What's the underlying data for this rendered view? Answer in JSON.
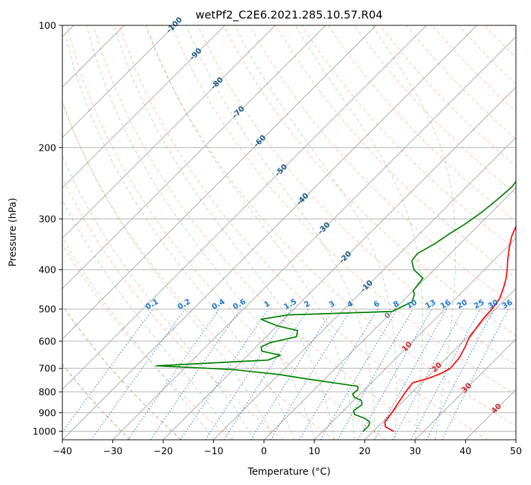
{
  "chart_data": {
    "type": "line",
    "title": "wetPf2_C2E6.2021.285.10.57.R04",
    "xlabel": "Temperature (°C)",
    "ylabel": "Pressure (hPa)",
    "xlim": [
      -40,
      50
    ],
    "ylim": [
      1050,
      100
    ],
    "y_scale": "log",
    "grid": true,
    "x_ticks": [
      "−40",
      "−30",
      "−20",
      "−10",
      "0",
      "10",
      "20",
      "30",
      "40",
      "50"
    ],
    "y_ticks": [
      "100",
      "200",
      "300",
      "400",
      "500",
      "600",
      "700",
      "800",
      "900",
      "1000"
    ],
    "series": [
      {
        "color": "#ff0000",
        "points": [
          [
            24,
            1000
          ],
          [
            21.5,
            975
          ],
          [
            20.5,
            950
          ],
          [
            20,
            900
          ],
          [
            19.3,
            850
          ],
          [
            18.6,
            800
          ],
          [
            18.2,
            760
          ],
          [
            20.5,
            740
          ],
          [
            22,
            720
          ],
          [
            22.8,
            700
          ],
          [
            22.5,
            660
          ],
          [
            21.5,
            620
          ],
          [
            20.5,
            590
          ],
          [
            20,
            560
          ],
          [
            19.5,
            530
          ],
          [
            19.3,
            500
          ],
          [
            18.7,
            470
          ],
          [
            17.2,
            440
          ],
          [
            16,
            420
          ],
          [
            14.5,
            400
          ],
          [
            12.8,
            380
          ],
          [
            10.3,
            350
          ],
          [
            8.7,
            330
          ],
          [
            7.5,
            310
          ],
          [
            6.2,
            290
          ],
          [
            4.6,
            270
          ],
          [
            3.2,
            250
          ],
          [
            2,
            230
          ],
          [
            0.8,
            210
          ],
          [
            0.2,
            200
          ],
          [
            1.1,
            190
          ],
          [
            2.7,
            180
          ],
          [
            3.2,
            170
          ],
          [
            3.7,
            160
          ],
          [
            3.7,
            150
          ],
          [
            3.5,
            140
          ],
          [
            3.3,
            130
          ],
          [
            3,
            120
          ],
          [
            2.3,
            115
          ],
          [
            1.5,
            110
          ],
          [
            2.3,
            104
          ],
          [
            4,
            100
          ]
        ]
      },
      {
        "color": "#008000",
        "points": [
          [
            18,
            1000
          ],
          [
            18,
            970
          ],
          [
            17.5,
            950
          ],
          [
            15.8,
            930
          ],
          [
            13,
            910
          ],
          [
            12,
            890
          ],
          [
            12.5,
            860
          ],
          [
            11.5,
            840
          ],
          [
            9.5,
            825
          ],
          [
            8.5,
            810
          ],
          [
            8.7,
            790
          ],
          [
            8,
            775
          ],
          [
            -3,
            745
          ],
          [
            -10,
            725
          ],
          [
            -20,
            705
          ],
          [
            -36,
            690
          ],
          [
            -15,
            668
          ],
          [
            -13.5,
            650
          ],
          [
            -18,
            635
          ],
          [
            -19,
            620
          ],
          [
            -18,
            605
          ],
          [
            -14,
            585
          ],
          [
            -15,
            565
          ],
          [
            -20,
            550
          ],
          [
            -24.5,
            530
          ],
          [
            -20,
            517
          ],
          [
            0,
            507
          ],
          [
            2,
            480
          ],
          [
            1,
            460
          ],
          [
            0,
            450
          ],
          [
            -0.5,
            420
          ],
          [
            -4,
            400
          ],
          [
            -6.2,
            380
          ],
          [
            -6.5,
            365
          ],
          [
            -5,
            345
          ],
          [
            -4,
            325
          ],
          [
            -3,
            310
          ],
          [
            -2,
            290
          ],
          [
            -1.4,
            270
          ],
          [
            -1,
            250
          ],
          [
            -1.5,
            235
          ],
          [
            -1.8,
            225
          ],
          [
            -1,
            215
          ],
          [
            -3,
            200
          ],
          [
            -4.8,
            190
          ],
          [
            -8,
            183
          ],
          [
            -10,
            178
          ],
          [
            -12,
            170
          ],
          [
            -11,
            162
          ],
          [
            -9,
            155
          ],
          [
            -8,
            140
          ],
          [
            -6.5,
            130
          ],
          [
            -4,
            120
          ],
          [
            -1.5,
            110
          ],
          [
            1.4,
            100
          ]
        ]
      }
    ],
    "dry_adiabat_labels": [
      "-100",
      "-90",
      "-80",
      "-70",
      "-60",
      "-50",
      "-40",
      "-30",
      "-20",
      "-10",
      "0",
      "10",
      "20",
      "30",
      "40"
    ],
    "mixing_ratio_labels": [
      "0.1",
      "0.2",
      "0.4",
      "0.6",
      "1",
      "1.5",
      "2",
      "3",
      "4",
      "6",
      "8",
      "10",
      "13",
      "16",
      "20",
      "25",
      "30",
      "36"
    ]
  },
  "colors": {
    "temperature": "#ff0000",
    "dewpoint": "#008000",
    "dry_adiabat": "#ff6f3f",
    "moist_adiabat": "#2a9a2a",
    "mixing_ratio": "#1f77d4",
    "isotherm_label": "#1f5a8a",
    "warm_label": "#d62728"
  }
}
